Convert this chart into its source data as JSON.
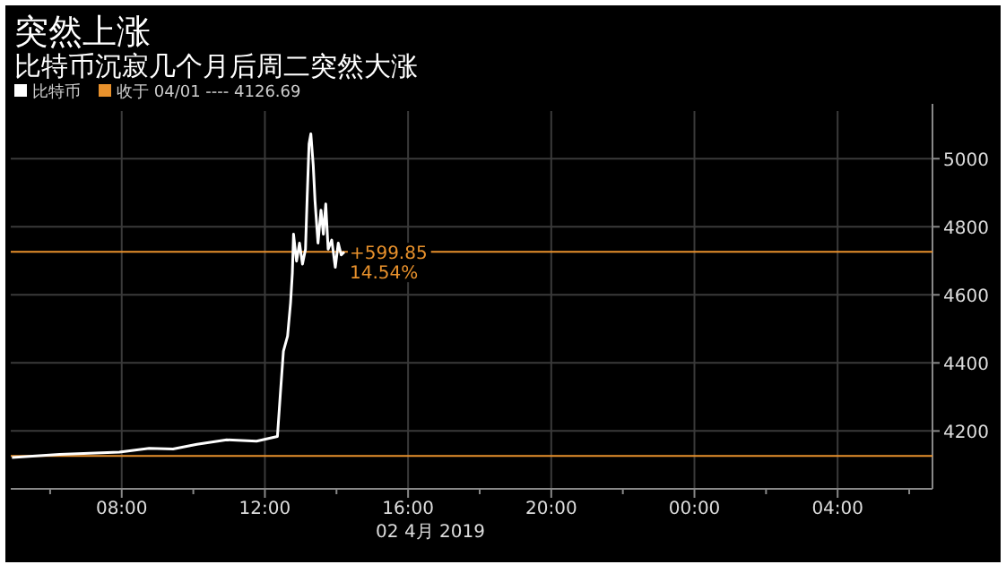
{
  "chart_data": {
    "type": "line",
    "title": "突然上涨",
    "subtitle": "比特币沉寂几个月后周二突然大涨",
    "xlabel": "02 4月 2019",
    "x": [
      "2019-04-02T04:56",
      "2019-04-02T06:16",
      "2019-04-02T07:56",
      "2019-04-02T08:46",
      "2019-04-02T09:26",
      "2019-04-02T10:06",
      "2019-04-02T10:56",
      "2019-04-02T11:46",
      "2019-04-02T12:21",
      "2019-04-02T12:26",
      "2019-04-02T12:31",
      "2019-04-02T12:38",
      "2019-04-02T12:43",
      "2019-04-02T12:46",
      "2019-04-02T12:48",
      "2019-04-02T12:53",
      "2019-04-02T12:58",
      "2019-04-02T13:03",
      "2019-04-02T13:08",
      "2019-04-02T13:11",
      "2019-04-02T13:14",
      "2019-04-02T13:17",
      "2019-04-02T13:21",
      "2019-04-02T13:24",
      "2019-04-02T13:29",
      "2019-04-02T13:34",
      "2019-04-02T13:38",
      "2019-04-02T13:42",
      "2019-04-02T13:46",
      "2019-04-02T13:52",
      "2019-04-02T13:58",
      "2019-04-02T14:03",
      "2019-04-02T14:08",
      "2019-04-02T14:13"
    ],
    "series": [
      {
        "name": "比特币",
        "color": "#ffffff",
        "values": [
          4122,
          4131,
          4138,
          4149,
          4147,
          4161,
          4174,
          4170,
          4184,
          4311,
          4434,
          4479,
          4576,
          4664,
          4778,
          4699,
          4752,
          4690,
          4734,
          4893,
          5043,
          5073,
          4981,
          4876,
          4752,
          4849,
          4778,
          4867,
          4734,
          4761,
          4681,
          4752,
          4717,
          4726
        ]
      }
    ],
    "xlim": [
      "2019-04-02T04:54",
      "2019-04-03T06:39"
    ],
    "ylim": [
      4030,
      5140
    ],
    "xticks": [
      {
        "value": "2019-04-02T06:00",
        "label": null
      },
      {
        "value": "2019-04-02T08:00",
        "label": "08:00"
      },
      {
        "value": "2019-04-02T10:00",
        "label": null
      },
      {
        "value": "2019-04-02T12:00",
        "label": "12:00"
      },
      {
        "value": "2019-04-02T14:00",
        "label": null
      },
      {
        "value": "2019-04-02T16:00",
        "label": "16:00"
      },
      {
        "value": "2019-04-02T18:00",
        "label": null
      },
      {
        "value": "2019-04-02T20:00",
        "label": "20:00"
      },
      {
        "value": "2019-04-02T22:00",
        "label": null
      },
      {
        "value": "2019-04-03T00:00",
        "label": "00:00"
      },
      {
        "value": "2019-04-03T02:00",
        "label": null
      },
      {
        "value": "2019-04-03T04:00",
        "label": "04:00"
      },
      {
        "value": "2019-04-03T06:00",
        "label": null
      }
    ],
    "yticks": [
      4200,
      4400,
      4600,
      4800,
      5000
    ],
    "grid": true,
    "legend": "top left",
    "ref_lines": [
      {
        "axis": "y",
        "value": 4126.69,
        "label": "收于 04/01 ---- 4126.69",
        "color": "#e8912c"
      },
      {
        "axis": "y",
        "value": 4726.54,
        "color": "#e8912c"
      }
    ],
    "annotations": [
      {
        "text": "+599.85",
        "x": "2019-04-02T14:13",
        "y": 4726.54
      },
      {
        "text": "14.54%",
        "x": "2019-04-02T14:13",
        "y": 4726.54
      }
    ]
  }
}
